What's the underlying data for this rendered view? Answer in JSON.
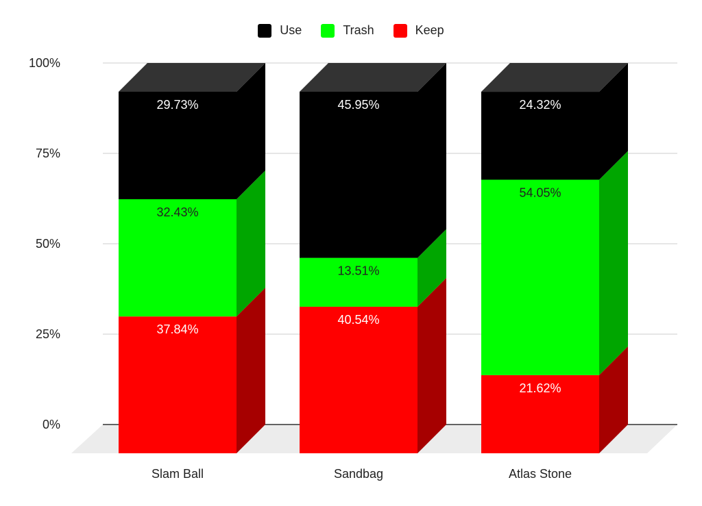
{
  "chart_data": {
    "type": "bar",
    "stacked": true,
    "style": "3d",
    "categories": [
      "Slam Ball",
      "Sandbag",
      "Atlas Stone"
    ],
    "series": [
      {
        "name": "Keep",
        "color": "#ff0000",
        "values": [
          37.84,
          40.54,
          21.62
        ],
        "labels": [
          "37.84%",
          "40.54%",
          "21.62%"
        ]
      },
      {
        "name": "Trash",
        "color": "#00ff00",
        "values": [
          32.43,
          13.51,
          54.05
        ],
        "labels": [
          "32.43%",
          "13.51%",
          "54.05%"
        ]
      },
      {
        "name": "Use",
        "color": "#000000",
        "values": [
          29.73,
          45.95,
          24.32
        ],
        "labels": [
          "29.73%",
          "45.95%",
          "24.32%"
        ]
      }
    ],
    "legend_order": [
      "Use",
      "Trash",
      "Keep"
    ],
    "legend_position": "top-center",
    "ylim": [
      0,
      100
    ],
    "yticks": [
      "0%",
      "25%",
      "50%",
      "75%",
      "100%"
    ],
    "grid": true,
    "title": "",
    "xlabel": "",
    "ylabel": ""
  }
}
